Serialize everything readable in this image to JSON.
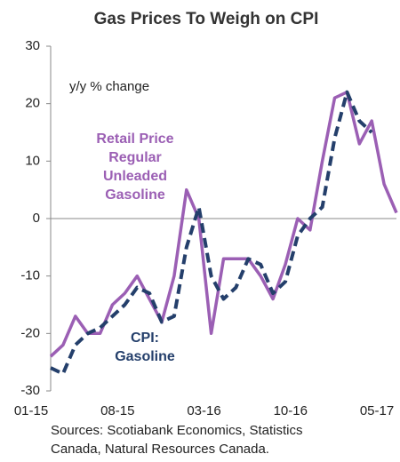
{
  "chart_data": {
    "type": "line",
    "title": "Gas Prices To Weigh on CPI",
    "y_label": "y/y % change",
    "source_lines": [
      "Sources: Scotiabank Economics, Statistics",
      "Canada, Natural Resources Canada."
    ],
    "categories": [
      "01-15",
      null,
      null,
      null,
      null,
      null,
      null,
      "08-15",
      null,
      null,
      null,
      null,
      null,
      null,
      "03-16",
      null,
      null,
      null,
      null,
      null,
      null,
      "10-16",
      null,
      null,
      null,
      null,
      null,
      null,
      "05-17"
    ],
    "series": [
      {
        "name_lines": [
          "Retail Price",
          "Regular",
          "Unleaded",
          "Gasoline"
        ],
        "color": "#9b5fb4",
        "dashed": false,
        "values": [
          -24,
          -22,
          -17,
          -20,
          -20,
          -15,
          -13,
          -10,
          -14,
          -18,
          -10,
          5,
          0,
          -20,
          -7,
          -7,
          -7,
          -10,
          -14,
          -8,
          0,
          -2,
          10,
          21,
          22,
          13,
          17,
          6,
          1
        ]
      },
      {
        "name_lines": [
          "CPI:",
          "Gasoline"
        ],
        "color": "#243f6b",
        "dashed": true,
        "values": [
          -26,
          -27,
          -22,
          -20,
          -19,
          -17,
          -15,
          -12,
          -13,
          -18,
          -17,
          -5,
          2,
          -10,
          -14,
          -12,
          -7,
          -8,
          -13,
          -11,
          -3,
          0,
          2,
          14,
          22,
          17,
          15,
          null,
          null
        ]
      }
    ],
    "ylim": [
      -30,
      30
    ],
    "yticks": [
      -30,
      -20,
      -10,
      0,
      10,
      20,
      30
    ]
  }
}
